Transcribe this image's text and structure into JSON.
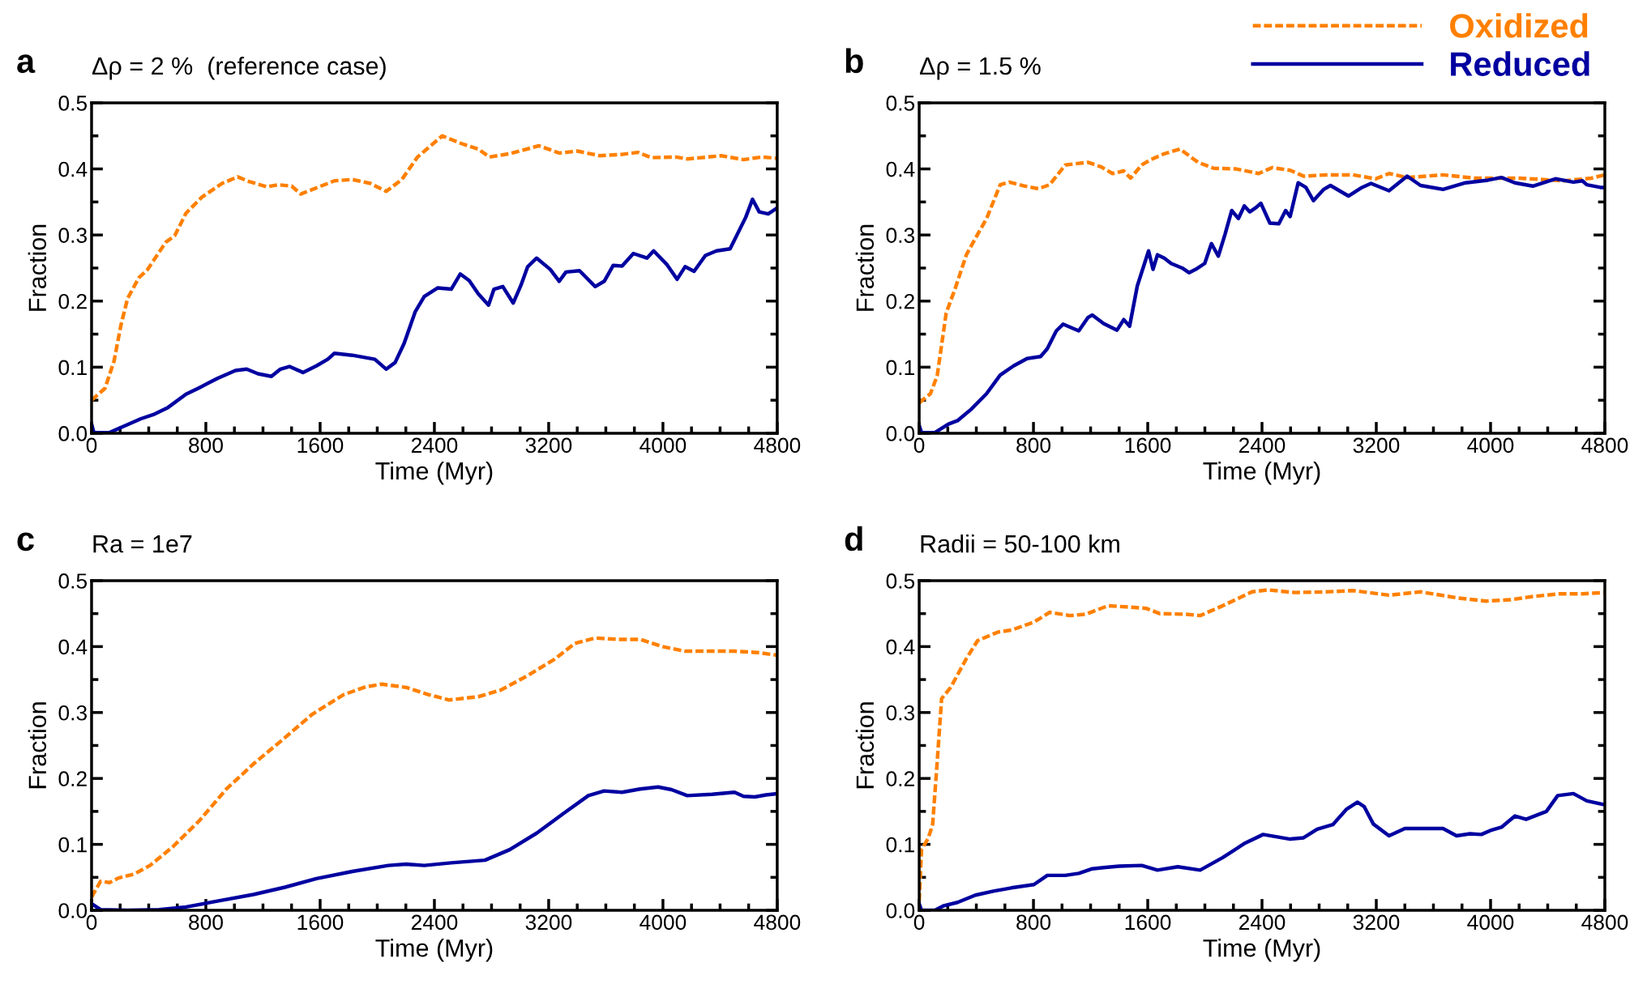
{
  "chart_data": [
    {
      "type": "line",
      "title": "Δρ = 2 %  (reference case)",
      "xlabel": "Time (Myr)",
      "ylabel": "Fraction",
      "annotations": [
        "a"
      ],
      "xlim": [
        0,
        4800
      ],
      "xticks": [
        0,
        {
          "value": 200,
          "label": null
        },
        {
          "value": 400,
          "label": null
        },
        {
          "value": 600,
          "label": null
        },
        800,
        {
          "value": 1000,
          "label": null
        },
        {
          "value": 1200,
          "label": null
        },
        {
          "value": 1400,
          "label": null
        },
        1600,
        {
          "value": 1800,
          "label": null
        },
        {
          "value": 2000,
          "label": null
        },
        {
          "value": 2200,
          "label": null
        },
        2400,
        {
          "value": 2600,
          "label": null
        },
        {
          "value": 2800,
          "label": null
        },
        {
          "value": 3000,
          "label": null
        },
        3200,
        {
          "value": 3400,
          "label": null
        },
        {
          "value": 3600,
          "label": null
        },
        {
          "value": 3800,
          "label": null
        },
        4000,
        {
          "value": 4200,
          "label": null
        },
        {
          "value": 4400,
          "label": null
        },
        {
          "value": 4600,
          "label": null
        },
        4800
      ],
      "ylim": [
        0,
        0.5
      ],
      "yticks": [
        {
          "value": 0,
          "label": "0.0"
        },
        {
          "value": 0.05,
          "label": null
        },
        0.1,
        {
          "value": 0.15,
          "label": null
        },
        0.2,
        {
          "value": 0.25,
          "label": null
        },
        0.3,
        {
          "value": 0.35,
          "label": null
        },
        0.4,
        {
          "value": 0.45,
          "label": null
        },
        0.5
      ],
      "grid": false,
      "legend": false,
      "series": [
        {
          "color": "#ff8000",
          "line_style": "dashed",
          "x": [
            0,
            94,
            157,
            205,
            252,
            330,
            393,
            519,
            582,
            661,
            771,
            913,
            1023,
            1102,
            1228,
            1307,
            1401,
            1464,
            1606,
            1700,
            1826,
            1952,
            2063,
            2172,
            2282,
            2455,
            2581,
            2707,
            2786,
            2927,
            3132,
            3274,
            3400,
            3557,
            3714,
            3825,
            3919,
            4092,
            4171,
            4407,
            4564,
            4690,
            4800
          ],
          "values": [
            0.05,
            0.068,
            0.109,
            0.163,
            0.204,
            0.235,
            0.248,
            0.289,
            0.299,
            0.333,
            0.357,
            0.378,
            0.388,
            0.381,
            0.373,
            0.376,
            0.374,
            0.362,
            0.374,
            0.382,
            0.384,
            0.378,
            0.366,
            0.384,
            0.418,
            0.45,
            0.439,
            0.43,
            0.418,
            0.423,
            0.435,
            0.424,
            0.427,
            0.42,
            0.422,
            0.425,
            0.417,
            0.418,
            0.415,
            0.42,
            0.414,
            0.418,
            0.416
          ]
        },
        {
          "color": "#0000a0",
          "line_style": "solid",
          "x": [
            0,
            16,
            126,
            220,
            346,
            441,
            535,
            661,
            755,
            881,
            1007,
            1086,
            1165,
            1259,
            1322,
            1385,
            1480,
            1574,
            1653,
            1700,
            1826,
            1983,
            2063,
            2125,
            2188,
            2266,
            2329,
            2424,
            2518,
            2581,
            2644,
            2707,
            2779,
            2817,
            2879,
            2952,
            3006,
            3053,
            3116,
            3211,
            3274,
            3321,
            3416,
            3526,
            3589,
            3652,
            3714,
            3793,
            3888,
            3935,
            4029,
            4099,
            4155,
            4218,
            4297,
            4375,
            4470,
            4580,
            4627,
            4674,
            4737,
            4800
          ],
          "values": [
            0.014,
            0.001,
            0.001,
            0.01,
            0.022,
            0.029,
            0.039,
            0.059,
            0.069,
            0.083,
            0.095,
            0.097,
            0.09,
            0.086,
            0.097,
            0.101,
            0.092,
            0.102,
            0.112,
            0.121,
            0.118,
            0.112,
            0.097,
            0.107,
            0.136,
            0.184,
            0.207,
            0.22,
            0.218,
            0.241,
            0.231,
            0.211,
            0.194,
            0.218,
            0.222,
            0.197,
            0.224,
            0.252,
            0.265,
            0.248,
            0.23,
            0.244,
            0.246,
            0.222,
            0.23,
            0.254,
            0.253,
            0.272,
            0.265,
            0.276,
            0.255,
            0.233,
            0.252,
            0.245,
            0.269,
            0.276,
            0.279,
            0.327,
            0.354,
            0.335,
            0.332,
            0.341
          ]
        }
      ]
    },
    {
      "type": "line",
      "title": "Δρ = 1.5 %",
      "xlabel": "Time (Myr)",
      "ylabel": "Fraction",
      "annotations": [
        "b"
      ],
      "xlim": [
        0,
        4800
      ],
      "xticks": [
        0,
        {
          "value": 200,
          "label": null
        },
        {
          "value": 400,
          "label": null
        },
        {
          "value": 600,
          "label": null
        },
        800,
        {
          "value": 1000,
          "label": null
        },
        {
          "value": 1200,
          "label": null
        },
        {
          "value": 1400,
          "label": null
        },
        1600,
        {
          "value": 1800,
          "label": null
        },
        {
          "value": 2000,
          "label": null
        },
        {
          "value": 2200,
          "label": null
        },
        2400,
        {
          "value": 2600,
          "label": null
        },
        {
          "value": 2800,
          "label": null
        },
        {
          "value": 3000,
          "label": null
        },
        3200,
        {
          "value": 3400,
          "label": null
        },
        {
          "value": 3600,
          "label": null
        },
        {
          "value": 3800,
          "label": null
        },
        4000,
        {
          "value": 4200,
          "label": null
        },
        {
          "value": 4400,
          "label": null
        },
        {
          "value": 4600,
          "label": null
        },
        4800
      ],
      "ylim": [
        0,
        0.5
      ],
      "yticks": [
        {
          "value": 0,
          "label": "0.0"
        },
        {
          "value": 0.05,
          "label": null
        },
        0.1,
        {
          "value": 0.15,
          "label": null
        },
        0.2,
        {
          "value": 0.25,
          "label": null
        },
        0.3,
        {
          "value": 0.35,
          "label": null
        },
        0.4,
        {
          "value": 0.45,
          "label": null
        },
        0.5
      ],
      "grid": false,
      "legend": "top right",
      "series": [
        {
          "name": "Oxidized",
          "color": "#ff8000",
          "line_style": "dashed",
          "x": [
            0,
            79,
            126,
            189,
            252,
            330,
            409,
            472,
            567,
            630,
            740,
            834,
            913,
            1023,
            1181,
            1275,
            1354,
            1432,
            1480,
            1558,
            1621,
            1716,
            1826,
            1952,
            2062,
            2219,
            2376,
            2471,
            2597,
            2691,
            2849,
            3037,
            3195,
            3290,
            3416,
            3667,
            3888,
            4202,
            4517,
            4706,
            4800
          ],
          "values": [
            0.046,
            0.06,
            0.087,
            0.182,
            0.219,
            0.27,
            0.301,
            0.325,
            0.376,
            0.38,
            0.374,
            0.37,
            0.376,
            0.406,
            0.41,
            0.403,
            0.393,
            0.397,
            0.386,
            0.406,
            0.414,
            0.423,
            0.43,
            0.41,
            0.401,
            0.4,
            0.393,
            0.402,
            0.398,
            0.389,
            0.391,
            0.391,
            0.385,
            0.393,
            0.387,
            0.391,
            0.386,
            0.386,
            0.382,
            0.386,
            0.391
          ]
        },
        {
          "name": "Reduced",
          "color": "#0000a0",
          "line_style": "solid",
          "x": [
            0,
            16,
            110,
            205,
            268,
            362,
            472,
            567,
            661,
            755,
            850,
            897,
            960,
            1007,
            1117,
            1181,
            1212,
            1291,
            1385,
            1432,
            1473,
            1527,
            1606,
            1637,
            1668,
            1716,
            1763,
            1841,
            1889,
            1936,
            1999,
            2046,
            2094,
            2141,
            2188,
            2235,
            2276,
            2314,
            2361,
            2392,
            2455,
            2518,
            2565,
            2597,
            2653,
            2707,
            2760,
            2832,
            2879,
            2942,
            3005,
            3100,
            3163,
            3289,
            3416,
            3510,
            3667,
            3825,
            3982,
            4076,
            4170,
            4296,
            4454,
            4580,
            4643,
            4674,
            4769,
            4800
          ],
          "values": [
            0.012,
            0.001,
            0.001,
            0.014,
            0.019,
            0.036,
            0.06,
            0.088,
            0.102,
            0.113,
            0.116,
            0.128,
            0.155,
            0.165,
            0.155,
            0.175,
            0.179,
            0.166,
            0.156,
            0.172,
            0.162,
            0.223,
            0.276,
            0.248,
            0.27,
            0.265,
            0.257,
            0.25,
            0.243,
            0.248,
            0.257,
            0.287,
            0.268,
            0.301,
            0.337,
            0.325,
            0.344,
            0.335,
            0.342,
            0.348,
            0.318,
            0.317,
            0.337,
            0.328,
            0.379,
            0.372,
            0.352,
            0.369,
            0.375,
            0.367,
            0.359,
            0.372,
            0.378,
            0.367,
            0.389,
            0.375,
            0.369,
            0.379,
            0.383,
            0.387,
            0.379,
            0.374,
            0.385,
            0.38,
            0.382,
            0.376,
            0.372,
            0.372
          ]
        }
      ]
    },
    {
      "type": "line",
      "title": "Ra = 1e7",
      "xlabel": "Time (Myr)",
      "ylabel": "Fraction",
      "annotations": [
        "c"
      ],
      "xlim": [
        0,
        4800
      ],
      "xticks": [
        0,
        {
          "value": 200,
          "label": null
        },
        {
          "value": 400,
          "label": null
        },
        {
          "value": 600,
          "label": null
        },
        800,
        {
          "value": 1000,
          "label": null
        },
        {
          "value": 1200,
          "label": null
        },
        {
          "value": 1400,
          "label": null
        },
        1600,
        {
          "value": 1800,
          "label": null
        },
        {
          "value": 2000,
          "label": null
        },
        {
          "value": 2200,
          "label": null
        },
        2400,
        {
          "value": 2600,
          "label": null
        },
        {
          "value": 2800,
          "label": null
        },
        {
          "value": 3000,
          "label": null
        },
        3200,
        {
          "value": 3400,
          "label": null
        },
        {
          "value": 3600,
          "label": null
        },
        {
          "value": 3800,
          "label": null
        },
        4000,
        {
          "value": 4200,
          "label": null
        },
        {
          "value": 4400,
          "label": null
        },
        {
          "value": 4600,
          "label": null
        },
        4800
      ],
      "ylim": [
        0,
        0.5
      ],
      "yticks": [
        {
          "value": 0,
          "label": "0.0"
        },
        {
          "value": 0.05,
          "label": null
        },
        0.1,
        {
          "value": 0.15,
          "label": null
        },
        0.2,
        {
          "value": 0.25,
          "label": null
        },
        0.3,
        {
          "value": 0.35,
          "label": null
        },
        0.4,
        {
          "value": 0.45,
          "label": null
        },
        0.5
      ],
      "grid": false,
      "legend": false,
      "series": [
        {
          "color": "#ff8000",
          "line_style": "dashed",
          "x": [
            0,
            63,
            126,
            189,
            299,
            409,
            567,
            755,
            944,
            1133,
            1322,
            1543,
            1763,
            1920,
            2031,
            2204,
            2361,
            2503,
            2707,
            2864,
            3053,
            3242,
            3384,
            3526,
            3683,
            3840,
            3997,
            4155,
            4344,
            4501,
            4659,
            4800
          ],
          "values": [
            0.02,
            0.044,
            0.042,
            0.049,
            0.055,
            0.068,
            0.096,
            0.136,
            0.184,
            0.222,
            0.256,
            0.297,
            0.327,
            0.339,
            0.343,
            0.338,
            0.327,
            0.319,
            0.324,
            0.334,
            0.356,
            0.381,
            0.405,
            0.413,
            0.411,
            0.411,
            0.4,
            0.393,
            0.393,
            0.393,
            0.391,
            0.387
          ]
        },
        {
          "color": "#0000a0",
          "line_style": "solid",
          "x": [
            0,
            63,
            252,
            472,
            661,
            881,
            1133,
            1354,
            1574,
            1826,
            2078,
            2204,
            2329,
            2518,
            2754,
            2927,
            3116,
            3305,
            3478,
            3588,
            3714,
            3840,
            3966,
            4060,
            4170,
            4344,
            4501,
            4564,
            4643,
            4722,
            4800
          ],
          "values": [
            0.01,
            0.001,
            0,
            0.001,
            0.005,
            0.014,
            0.024,
            0.035,
            0.048,
            0.059,
            0.068,
            0.07,
            0.068,
            0.072,
            0.076,
            0.092,
            0.117,
            0.147,
            0.174,
            0.181,
            0.179,
            0.184,
            0.187,
            0.183,
            0.174,
            0.176,
            0.179,
            0.173,
            0.172,
            0.175,
            0.177
          ]
        }
      ]
    },
    {
      "type": "line",
      "title": "Radii = 50-100 km",
      "xlabel": "Time (Myr)",
      "ylabel": "Fraction",
      "annotations": [
        "d"
      ],
      "xlim": [
        0,
        4800
      ],
      "xticks": [
        0,
        {
          "value": 200,
          "label": null
        },
        {
          "value": 400,
          "label": null
        },
        {
          "value": 600,
          "label": null
        },
        800,
        {
          "value": 1000,
          "label": null
        },
        {
          "value": 1200,
          "label": null
        },
        {
          "value": 1400,
          "label": null
        },
        1600,
        {
          "value": 1800,
          "label": null
        },
        {
          "value": 2000,
          "label": null
        },
        {
          "value": 2200,
          "label": null
        },
        2400,
        {
          "value": 2600,
          "label": null
        },
        {
          "value": 2800,
          "label": null
        },
        {
          "value": 3000,
          "label": null
        },
        3200,
        {
          "value": 3400,
          "label": null
        },
        {
          "value": 3600,
          "label": null
        },
        {
          "value": 3800,
          "label": null
        },
        4000,
        {
          "value": 4200,
          "label": null
        },
        {
          "value": 4400,
          "label": null
        },
        {
          "value": 4600,
          "label": null
        },
        4800
      ],
      "ylim": [
        0,
        0.5
      ],
      "yticks": [
        {
          "value": 0,
          "label": "0.0"
        },
        {
          "value": 0.05,
          "label": null
        },
        0.1,
        {
          "value": 0.15,
          "label": null
        },
        0.2,
        {
          "value": 0.25,
          "label": null
        },
        0.3,
        {
          "value": 0.35,
          "label": null
        },
        0.4,
        {
          "value": 0.45,
          "label": null
        },
        0.5
      ],
      "grid": false,
      "legend": false,
      "series": [
        {
          "color": "#ff8000",
          "line_style": "dashed",
          "x": [
            0,
            16,
            63,
            94,
            126,
            157,
            220,
            331,
            409,
            551,
            645,
            803,
            913,
            1055,
            1165,
            1322,
            1464,
            1589,
            1684,
            1873,
            1967,
            2125,
            2330,
            2440,
            2629,
            2849,
            3037,
            3289,
            3510,
            3762,
            3966,
            4139,
            4296,
            4485,
            4643,
            4800
          ],
          "values": [
            0.014,
            0.092,
            0.109,
            0.13,
            0.225,
            0.321,
            0.338,
            0.382,
            0.409,
            0.422,
            0.425,
            0.437,
            0.452,
            0.447,
            0.449,
            0.462,
            0.46,
            0.458,
            0.45,
            0.449,
            0.447,
            0.462,
            0.483,
            0.486,
            0.482,
            0.483,
            0.485,
            0.478,
            0.483,
            0.474,
            0.469,
            0.471,
            0.476,
            0.48,
            0.48,
            0.482
          ]
        },
        {
          "color": "#0000a0",
          "line_style": "solid",
          "x": [
            0,
            16,
            110,
            173,
            268,
            394,
            519,
            645,
            803,
            897,
            1023,
            1118,
            1212,
            1306,
            1401,
            1558,
            1668,
            1810,
            1967,
            2125,
            2282,
            2408,
            2597,
            2691,
            2786,
            2896,
            2990,
            3069,
            3116,
            3179,
            3289,
            3400,
            3541,
            3667,
            3762,
            3856,
            3935,
            3999,
            4076,
            4171,
            4249,
            4391,
            4470,
            4580,
            4674,
            4800
          ],
          "values": [
            0.01,
            0,
            0,
            0.007,
            0.012,
            0.023,
            0.029,
            0.034,
            0.039,
            0.053,
            0.053,
            0.056,
            0.063,
            0.065,
            0.067,
            0.068,
            0.061,
            0.066,
            0.061,
            0.08,
            0.102,
            0.115,
            0.108,
            0.11,
            0.123,
            0.13,
            0.153,
            0.164,
            0.157,
            0.131,
            0.113,
            0.124,
            0.124,
            0.124,
            0.113,
            0.116,
            0.115,
            0.121,
            0.126,
            0.143,
            0.138,
            0.15,
            0.174,
            0.177,
            0.166,
            0.16
          ]
        }
      ]
    }
  ]
}
